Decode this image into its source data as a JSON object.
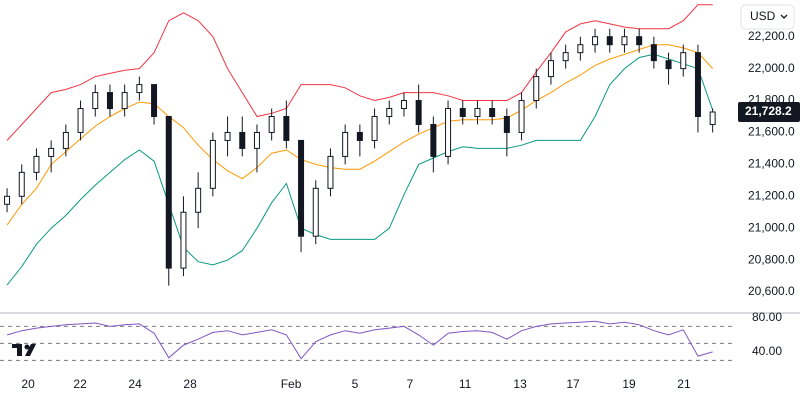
{
  "currency": "USD",
  "chart_data": [
    {
      "type": "candlestick",
      "xlim": [
        -0.48,
        49.52
      ],
      "xticks": [
        {
          "value": 1.43,
          "label": "20"
        },
        {
          "value": 4.97,
          "label": "22"
        },
        {
          "value": 8.71,
          "label": "24"
        },
        {
          "value": 12.45,
          "label": "28"
        },
        {
          "value": 19.32,
          "label": "Feb"
        },
        {
          "value": 23.67,
          "label": "5"
        },
        {
          "value": 27.41,
          "label": "7"
        },
        {
          "value": 31.16,
          "label": "11"
        },
        {
          "value": 34.9,
          "label": "13"
        },
        {
          "value": 38.5,
          "label": "17"
        },
        {
          "value": 42.31,
          "label": "19"
        },
        {
          "value": 46.05,
          "label": "21"
        }
      ],
      "ylim": [
        20475,
        22430
      ],
      "yticks": [
        {
          "value": 20600,
          "label": "20,600.0"
        },
        {
          "value": 20800,
          "label": "20,800.0"
        },
        {
          "value": 21000,
          "label": "21,000.0"
        },
        {
          "value": 21200,
          "label": "21,200.0"
        },
        {
          "value": 21400,
          "label": "21,400.0"
        },
        {
          "value": 21600,
          "label": "21,600.0"
        },
        {
          "value": 21800,
          "label": "21,800.0"
        },
        {
          "value": 22000,
          "label": "22,000.0"
        },
        {
          "value": 22200,
          "label": "22,200.0"
        }
      ],
      "up_color": "#ffffff",
      "down_color": "#131722",
      "wick_color": "#131722",
      "open": [
        21150,
        21200,
        21350,
        21450,
        21500,
        21600,
        21750,
        21850,
        21750,
        21850,
        21900,
        21700,
        20750,
        21100,
        21250,
        21550,
        21600,
        21500,
        21600,
        21700,
        21550,
        20950,
        21250,
        21450,
        21600,
        21550,
        21700,
        21750,
        21800,
        21650,
        21450,
        21750,
        21700,
        21750,
        21700,
        21600,
        21800,
        21950,
        22050,
        22100,
        22150,
        22200,
        22150,
        22200,
        22150,
        22050,
        22000,
        22100,
        21650
      ],
      "high": [
        21250,
        21400,
        21500,
        21550,
        21650,
        21800,
        21900,
        21900,
        21900,
        21950,
        21900,
        21700,
        21200,
        21350,
        21600,
        21700,
        21700,
        21650,
        21750,
        21800,
        21550,
        21300,
        21500,
        21650,
        21650,
        21750,
        21800,
        21850,
        21900,
        21700,
        21800,
        21800,
        21800,
        21800,
        21750,
        21850,
        22000,
        22100,
        22150,
        22200,
        22250,
        22250,
        22250,
        22250,
        22200,
        22100,
        22150,
        22150,
        21750
      ],
      "low": [
        21100,
        21150,
        21300,
        21350,
        21450,
        21550,
        21700,
        21700,
        21700,
        21800,
        21650,
        20640,
        20700,
        21000,
        21200,
        21450,
        21450,
        21350,
        21550,
        21500,
        20850,
        20900,
        21200,
        21400,
        21450,
        21500,
        21650,
        21700,
        21600,
        21350,
        21400,
        21650,
        21650,
        21650,
        21450,
        21550,
        21750,
        21900,
        22000,
        22050,
        22100,
        22100,
        22100,
        22100,
        22000,
        21900,
        21950,
        21600,
        21600
      ],
      "close": [
        21200,
        21350,
        21450,
        21500,
        21600,
        21750,
        21850,
        21750,
        21850,
        21900,
        21700,
        20750,
        21100,
        21250,
        21550,
        21600,
        21500,
        21600,
        21700,
        21550,
        20950,
        21250,
        21450,
        21600,
        21550,
        21700,
        21750,
        21800,
        21650,
        21450,
        21750,
        21700,
        21750,
        21700,
        21600,
        21800,
        21950,
        22050,
        22100,
        22150,
        22200,
        22150,
        22200,
        22150,
        22050,
        22000,
        22100,
        21700,
        21728.2
      ],
      "last_price": {
        "value": 21728.2,
        "label": "21,728.2"
      },
      "last_price_color": "#131722",
      "lines": [
        {
          "color": "#f23645",
          "values": [
            21550,
            21650,
            21750,
            21850,
            21870,
            21900,
            21950,
            21970,
            21990,
            22000,
            22100,
            22300,
            22350,
            22300,
            22200,
            22000,
            21850,
            21700,
            21720,
            21750,
            21900,
            21900,
            21900,
            21880,
            21830,
            21800,
            21820,
            21850,
            21850,
            21850,
            21830,
            21800,
            21800,
            21800,
            21800,
            21850,
            21980,
            22100,
            22230,
            22280,
            22300,
            22280,
            22260,
            22250,
            22250,
            22250,
            22300,
            22400,
            22400
          ]
        },
        {
          "color": "#ff9800",
          "values": [
            21020,
            21150,
            21250,
            21400,
            21480,
            21560,
            21640,
            21700,
            21750,
            21790,
            21780,
            21700,
            21630,
            21520,
            21430,
            21360,
            21310,
            21380,
            21470,
            21490,
            21430,
            21400,
            21380,
            21370,
            21370,
            21420,
            21480,
            21540,
            21590,
            21630,
            21670,
            21680,
            21680,
            21680,
            21690,
            21740,
            21800,
            21850,
            21910,
            21960,
            22020,
            22060,
            22090,
            22120,
            22150,
            22150,
            22130,
            22100,
            22000
          ]
        },
        {
          "color": "#089981",
          "values": [
            20645,
            20760,
            20900,
            21000,
            21080,
            21180,
            21270,
            21350,
            21430,
            21490,
            21420,
            21150,
            20880,
            20790,
            20770,
            20800,
            20860,
            21000,
            21160,
            21280,
            21000,
            20960,
            20930,
            20930,
            20930,
            20930,
            21000,
            21210,
            21400,
            21440,
            21480,
            21510,
            21500,
            21500,
            21500,
            21520,
            21550,
            21550,
            21550,
            21550,
            21700,
            21900,
            22000,
            22070,
            22090,
            22060,
            22030,
            22000,
            21740
          ]
        }
      ]
    },
    {
      "type": "line",
      "xlim": [
        -0.48,
        49.52
      ],
      "ylim": [
        21,
        87
      ],
      "yticks": [
        {
          "value": 80,
          "label": "80.00"
        },
        {
          "value": 40,
          "label": "40.00"
        }
      ],
      "levels": [
        70,
        50,
        30
      ],
      "color": "#7e57c2",
      "values": [
        60,
        65,
        68,
        70,
        72,
        73,
        74,
        70,
        72,
        73,
        62,
        33,
        48,
        55,
        63,
        65,
        60,
        63,
        66,
        60,
        32,
        52,
        60,
        65,
        62,
        66,
        68,
        70,
        60,
        48,
        62,
        64,
        65,
        63,
        55,
        65,
        70,
        73,
        74,
        75,
        76,
        73,
        75,
        72,
        65,
        60,
        66,
        35,
        40
      ]
    }
  ]
}
